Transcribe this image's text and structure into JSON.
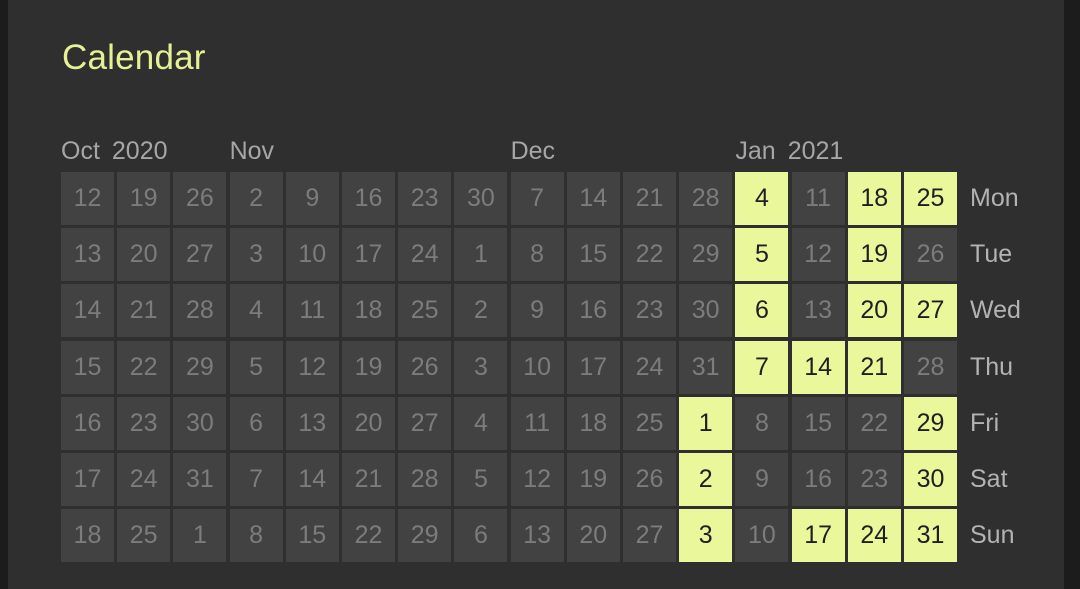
{
  "title": "Calendar",
  "colors": {
    "background": "#2f2f2f",
    "cell": "#424242",
    "highlight": "#eaf79a",
    "title": "#e6f094"
  },
  "months": [
    {
      "name": "Oct",
      "year": "2020",
      "col": 0
    },
    {
      "name": "Nov",
      "year": "",
      "col": 3
    },
    {
      "name": "Dec",
      "year": "",
      "col": 8
    },
    {
      "name": "Jan",
      "year": "2021",
      "col": 12
    }
  ],
  "weekdays": [
    "Mon",
    "Tue",
    "Wed",
    "Thu",
    "Fri",
    "Sat",
    "Sun"
  ],
  "weeks": [
    [
      12,
      13,
      14,
      15,
      16,
      17,
      18
    ],
    [
      19,
      20,
      21,
      22,
      23,
      24,
      25
    ],
    [
      26,
      27,
      28,
      29,
      30,
      31,
      1
    ],
    [
      2,
      3,
      4,
      5,
      6,
      7,
      8
    ],
    [
      9,
      10,
      11,
      12,
      13,
      14,
      15
    ],
    [
      16,
      17,
      18,
      19,
      20,
      21,
      22
    ],
    [
      23,
      24,
      25,
      26,
      27,
      28,
      29
    ],
    [
      30,
      1,
      2,
      3,
      4,
      5,
      6
    ],
    [
      7,
      8,
      9,
      10,
      11,
      12,
      13
    ],
    [
      14,
      15,
      16,
      17,
      18,
      19,
      20
    ],
    [
      21,
      22,
      23,
      24,
      25,
      26,
      27
    ],
    [
      28,
      29,
      30,
      31,
      1,
      2,
      3
    ],
    [
      4,
      5,
      6,
      7,
      8,
      9,
      10
    ],
    [
      11,
      12,
      13,
      14,
      15,
      16,
      17
    ],
    [
      18,
      19,
      20,
      21,
      22,
      23,
      24
    ],
    [
      25,
      26,
      27,
      28,
      29,
      30,
      31
    ]
  ],
  "highlighted": [
    [
      11,
      4
    ],
    [
      11,
      5
    ],
    [
      11,
      6
    ],
    [
      12,
      0
    ],
    [
      12,
      1
    ],
    [
      12,
      2
    ],
    [
      12,
      3
    ],
    [
      13,
      3
    ],
    [
      13,
      6
    ],
    [
      14,
      0
    ],
    [
      14,
      1
    ],
    [
      14,
      2
    ],
    [
      14,
      3
    ],
    [
      14,
      6
    ],
    [
      15,
      0
    ],
    [
      15,
      2
    ],
    [
      15,
      4
    ],
    [
      15,
      5
    ],
    [
      15,
      6
    ]
  ]
}
